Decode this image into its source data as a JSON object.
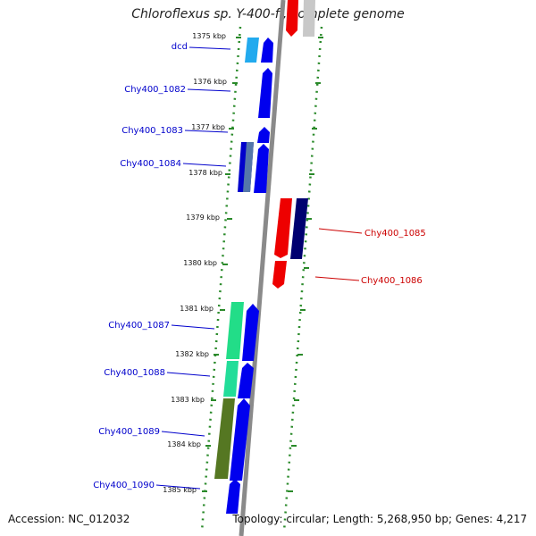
{
  "title": "Chloroflexus sp. Y-400-fl, complete genome",
  "footer": {
    "accession": "Accession: NC_012032",
    "topology": "Topology: circular; Length: 5,268,950 bp; Genes: 4,217"
  },
  "colors": {
    "forward_label": "#0000cc",
    "reverse_label": "#cc0000",
    "backbone": "#8a8a8a",
    "dotted_ring": "#2a8a2a"
  },
  "ticks": [
    {
      "label": "1375 kbp"
    },
    {
      "label": "1376 kbp"
    },
    {
      "label": "1377 kbp"
    },
    {
      "label": "1378 kbp"
    },
    {
      "label": "1379 kbp"
    },
    {
      "label": "1380 kbp"
    },
    {
      "label": "1381 kbp"
    },
    {
      "label": "1382 kbp"
    },
    {
      "label": "1383 kbp"
    },
    {
      "label": "1384 kbp"
    },
    {
      "label": "1385 kbp"
    }
  ],
  "genes_forward": [
    {
      "label": "dcd"
    },
    {
      "label": "Chy400_1082"
    },
    {
      "label": "Chy400_1083"
    },
    {
      "label": "Chy400_1084"
    },
    {
      "label": "Chy400_1087"
    },
    {
      "label": "Chy400_1088"
    },
    {
      "label": "Chy400_1089"
    },
    {
      "label": "Chy400_1090"
    }
  ],
  "genes_reverse": [
    {
      "label": "Chy400_1085"
    },
    {
      "label": "Chy400_1086"
    }
  ]
}
